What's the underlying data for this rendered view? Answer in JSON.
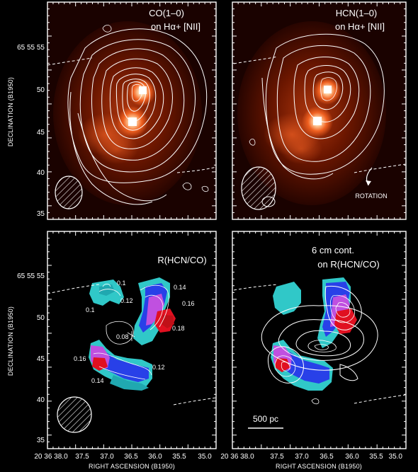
{
  "panels": [
    {
      "id": "tl",
      "label_line1": "CO(1–0)",
      "label_line2": "on Hα+ [NII]"
    },
    {
      "id": "tr",
      "label_line1": "HCN(1–0)",
      "label_line2": "on Hα+ [NII]",
      "annotation": "ROTATION"
    },
    {
      "id": "bl",
      "label_line1": "R(HCN/CO)",
      "label_line2": ""
    },
    {
      "id": "br",
      "label_line1": "6 cm cont.",
      "label_line2": "on R(HCN/CO)",
      "scalebar": "500 pc"
    }
  ],
  "axes": {
    "ylabel": "DECLINATION (B1950)",
    "xlabel": "RIGHT ASCENSION (B1950)",
    "y_ticks": [
      "65 55 55",
      "50",
      "45",
      "40",
      "35"
    ],
    "x_ticks": [
      "20 36 38.0",
      "37.5",
      "37.0",
      "36.5",
      "36.0",
      "35.5",
      "35.0"
    ]
  },
  "ratio_labels": [
    "0.1",
    "0.14",
    "0.1",
    "0.12",
    "0.16",
    "0.18",
    "0.08",
    "0.16",
    "0.12",
    "0.14"
  ],
  "colors": {
    "bg": "#000000",
    "halpha_dark": "#3a0800",
    "halpha_mid": "#a02800",
    "halpha_bright": "#f07030",
    "cyan": "#30c8c8",
    "blue": "#2840e8",
    "magenta": "#c050e0",
    "red": "#e01020"
  }
}
